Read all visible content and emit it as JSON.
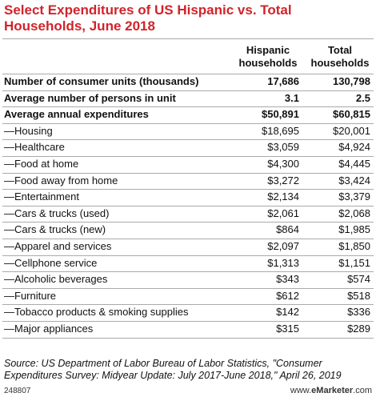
{
  "header": {
    "title": "Select Expenditures of US Hispanic vs. Total Households, June 2018"
  },
  "table": {
    "columns": [
      "Hispanic households",
      "Total households"
    ],
    "rows": [
      [
        "Number of consumer units (thousands)",
        "17,686",
        "130,798"
      ],
      [
        "Average number of persons in unit",
        "3.1",
        "2.5"
      ],
      [
        "Average annual expenditures",
        "$50,891",
        "$60,815"
      ],
      [
        "—Housing",
        "$18,695",
        "$20,001"
      ],
      [
        "—Healthcare",
        "$3,059",
        "$4,924"
      ],
      [
        "—Food at home",
        "$4,300",
        "$4,445"
      ],
      [
        "—Food away from home",
        "$3,272",
        "$3,424"
      ],
      [
        "—Entertainment",
        "$2,134",
        "$3,379"
      ],
      [
        "—Cars & trucks (used)",
        "$2,061",
        "$2,068"
      ],
      [
        "—Cars & trucks (new)",
        "$864",
        "$1,985"
      ],
      [
        "—Apparel and services",
        "$2,097",
        "$1,850"
      ],
      [
        "—Cellphone service",
        "$1,313",
        "$1,151"
      ],
      [
        "—Alcoholic beverages",
        "$343",
        "$574"
      ],
      [
        "—Furniture",
        "$612",
        "$518"
      ],
      [
        "—Tobacco products & smoking supplies",
        "$142",
        "$336"
      ],
      [
        "—Major appliances",
        "$315",
        "$289"
      ]
    ]
  },
  "source": "Source: US Department of Labor Bureau of Labor Statistics, \"Consumer Expenditures Survey: Midyear Update: July 2017-June 2018,\" April 26, 2019",
  "footer": {
    "id": "248807",
    "site": [
      "www.",
      "eMarketer",
      ".com"
    ]
  }
}
